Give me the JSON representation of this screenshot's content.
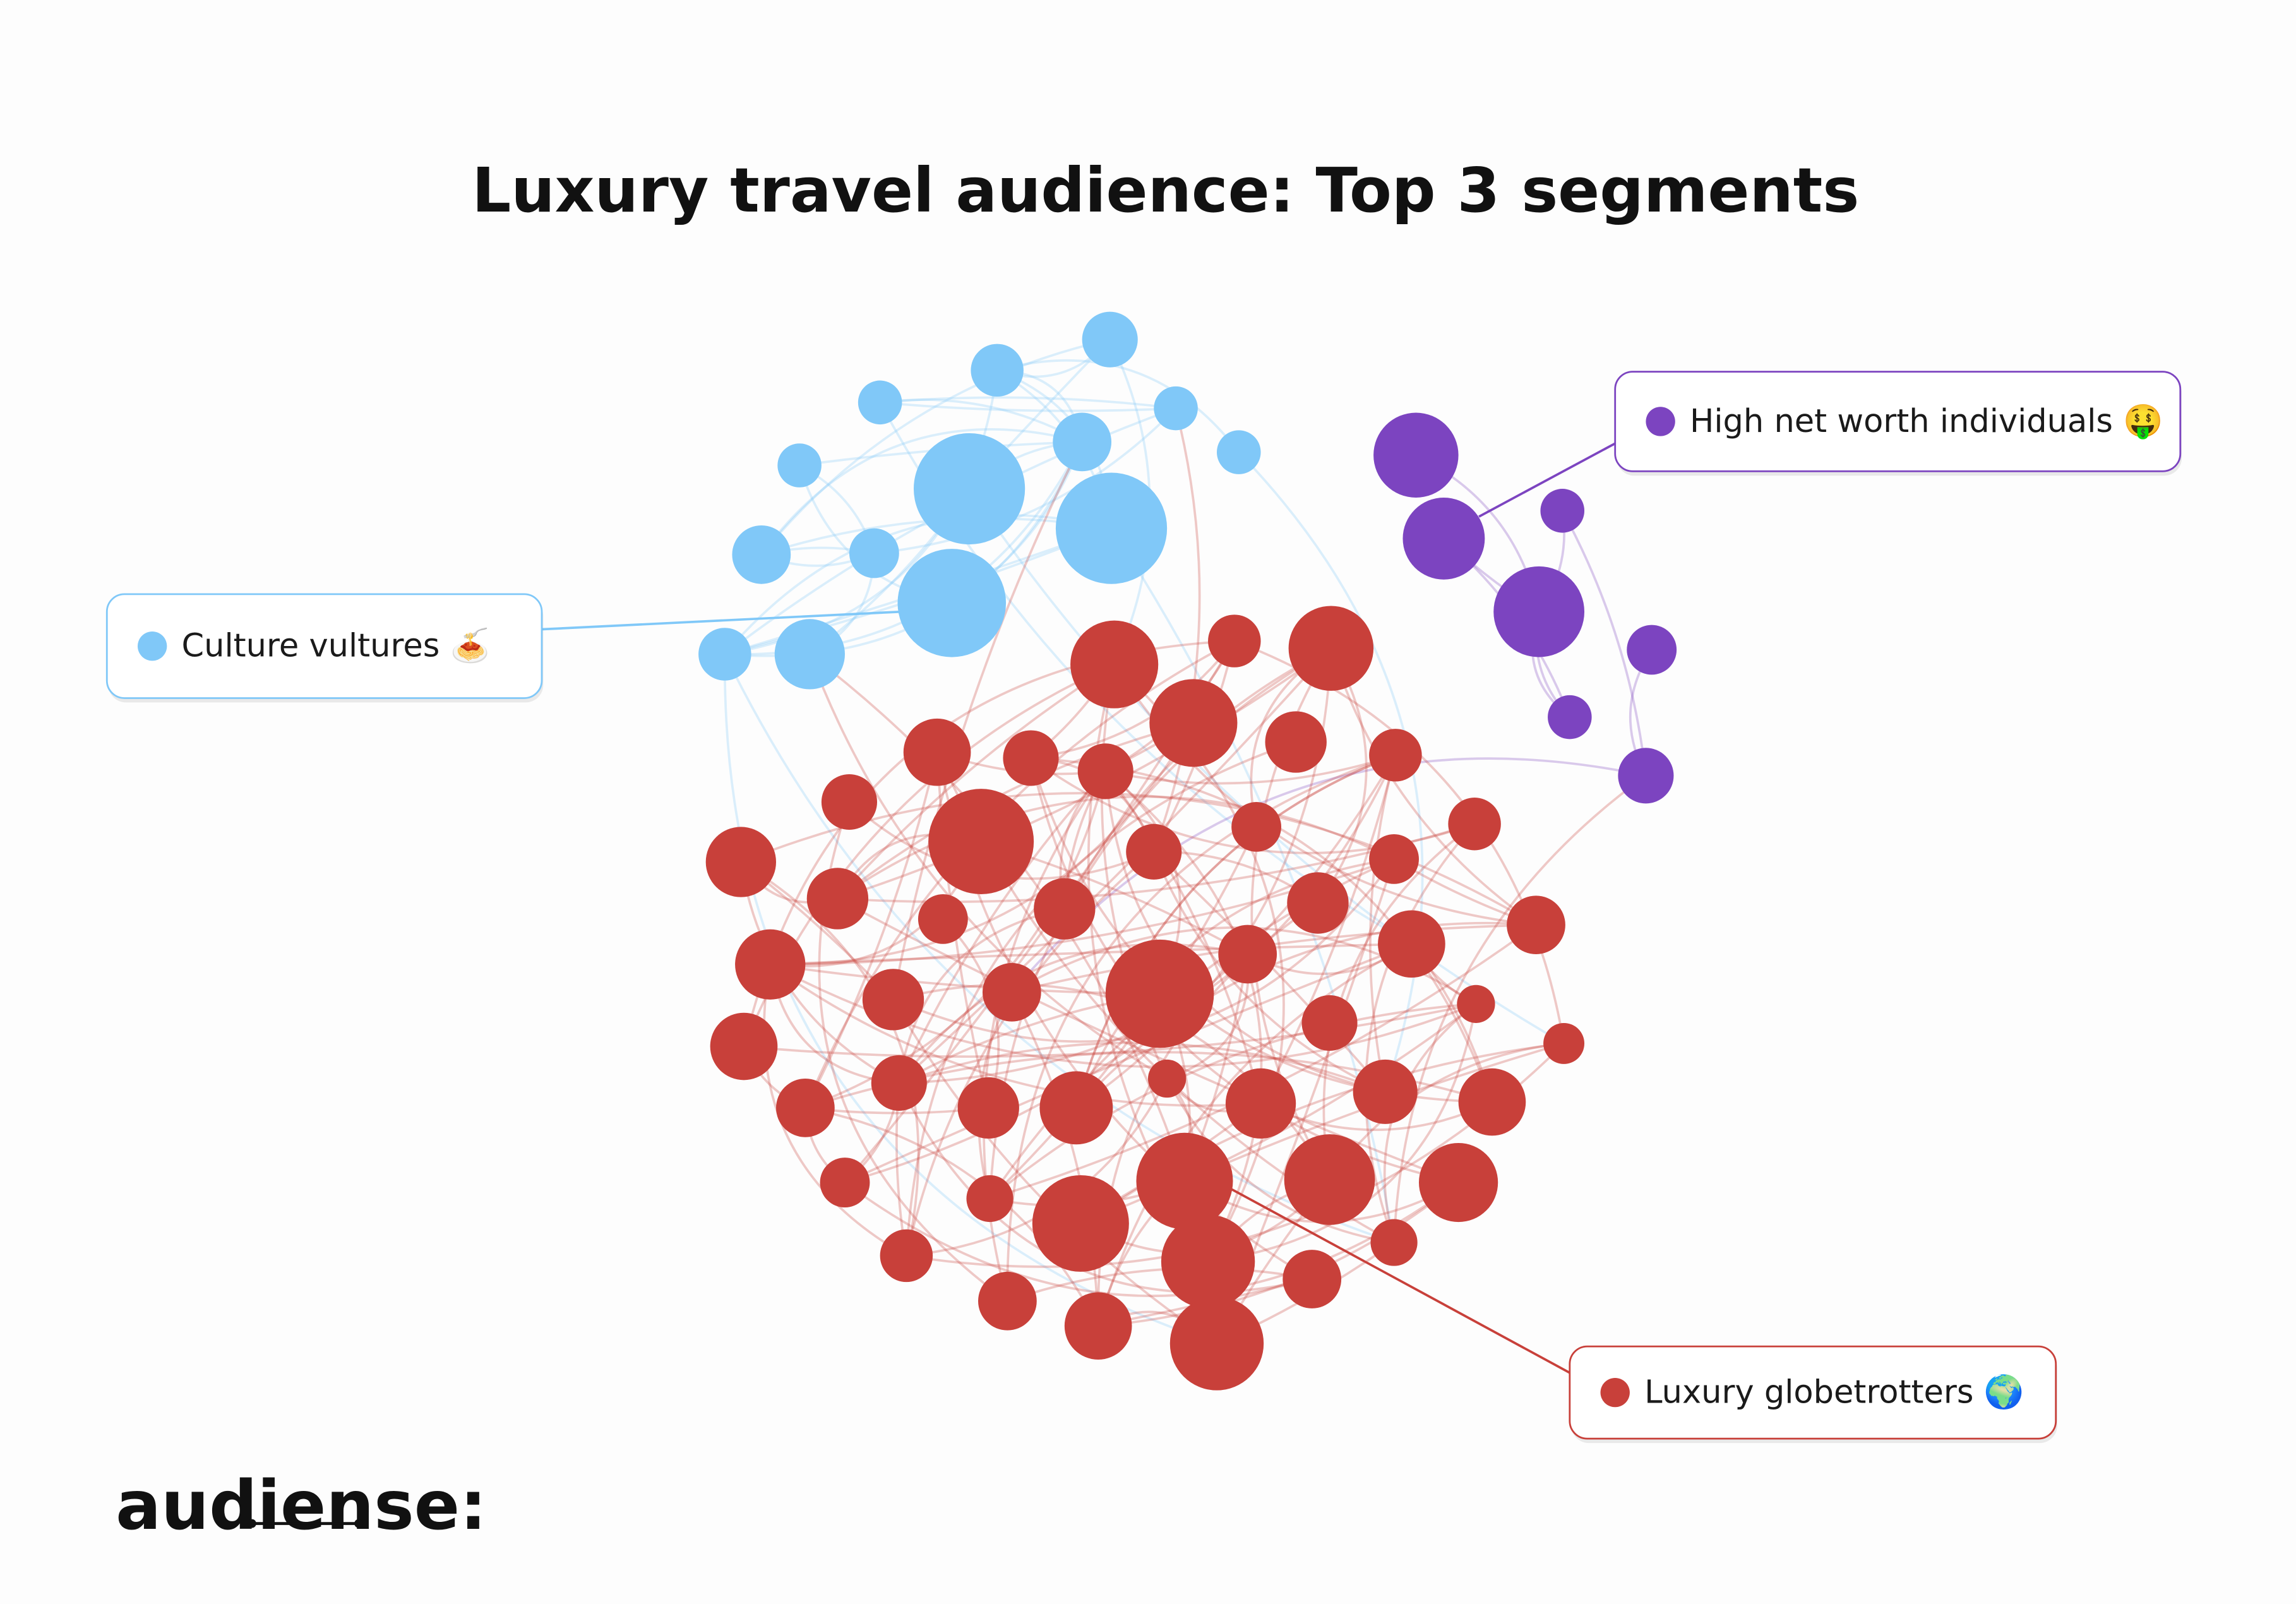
{
  "title": "Luxury travel audience: Top 3 segments",
  "segments": [
    {
      "label": "Culture vultures 🍝",
      "color": "#80c8f8"
    },
    {
      "label": "High net worth individuals 🤑",
      "color": "#7c44c0"
    },
    {
      "label": "Luxury globetrotters 🌍",
      "color": "#c8403a"
    }
  ],
  "logo": "audiense:"
}
